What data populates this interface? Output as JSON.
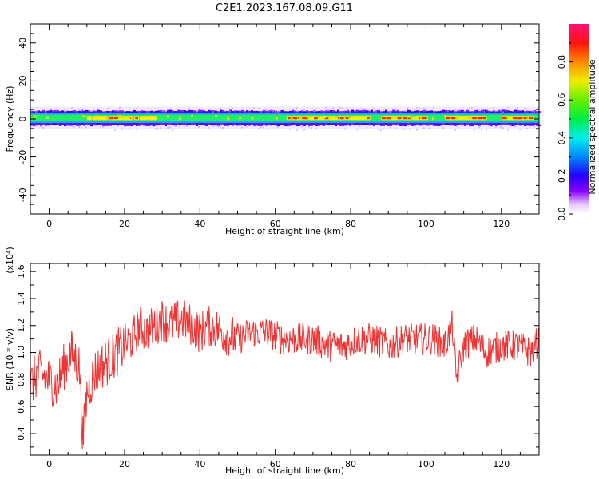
{
  "title": "C2E1.2023.167.08.09.G11",
  "chart_data": [
    {
      "type": "heatmap",
      "xlabel": "Height of straight line (km)",
      "ylabel": "Frequency (Hz)",
      "xlim": [
        -5,
        130
      ],
      "ylim": [
        -50,
        50
      ],
      "x_ticks": [
        0,
        20,
        40,
        60,
        80,
        100,
        120
      ],
      "y_ticks": [
        -40,
        -20,
        0,
        20,
        40
      ],
      "colorbar": {
        "label": "Normalized spectral amplitude",
        "range": [
          0.0,
          1.0
        ],
        "ticks": [
          "0.0",
          "0.2",
          "0.4",
          "0.6",
          "0.8"
        ],
        "colormap": "rainbow (white → violet → blue → cyan → green → yellow → red → magenta)"
      },
      "band": {
        "center_hz": 0.5,
        "half_width_hz": 3.5,
        "peak_segments_km": [
          [
            10,
            27
          ],
          [
            63,
            85
          ],
          [
            88,
            98
          ],
          [
            105,
            116
          ],
          [
            120,
            128
          ]
        ]
      }
    },
    {
      "type": "line",
      "xlabel": "Height of straight line (km)",
      "ylabel": "SNR (10 * v/v)",
      "multiplier": "(x10⁴)",
      "xlim": [
        -5,
        130
      ],
      "ylim": [
        0.24,
        1.66
      ],
      "x_ticks": [
        0,
        20,
        40,
        60,
        80,
        100,
        120
      ],
      "y_ticks": [
        "0.4",
        "0.6",
        "0.8",
        "1.0",
        "1.2",
        "1.4",
        "1.6"
      ],
      "color": "#ee3333",
      "series": [
        {
          "x": [
            -5,
            -3,
            0,
            2,
            4,
            6,
            8,
            9,
            10,
            12,
            14,
            16,
            18,
            20,
            22,
            24,
            26,
            28,
            30,
            32,
            35,
            38,
            40,
            43,
            46,
            50,
            54,
            58,
            62,
            66,
            70,
            74,
            78,
            82,
            86,
            90,
            94,
            98,
            102,
            105,
            107,
            108,
            110,
            113,
            116,
            120,
            124,
            128,
            130
          ],
          "y": [
            0.75,
            0.85,
            0.8,
            0.75,
            0.9,
            1.0,
            0.9,
            0.35,
            0.7,
            0.85,
            0.9,
            0.95,
            1.0,
            1.05,
            1.1,
            1.2,
            1.15,
            1.2,
            1.25,
            1.2,
            1.25,
            1.2,
            1.15,
            1.2,
            1.15,
            1.1,
            1.15,
            1.15,
            1.1,
            1.1,
            1.1,
            1.05,
            1.05,
            1.1,
            1.1,
            1.05,
            1.1,
            1.1,
            1.1,
            1.05,
            1.2,
            0.8,
            1.05,
            1.1,
            1.0,
            1.05,
            1.05,
            1.0,
            1.1
          ]
        }
      ]
    }
  ]
}
